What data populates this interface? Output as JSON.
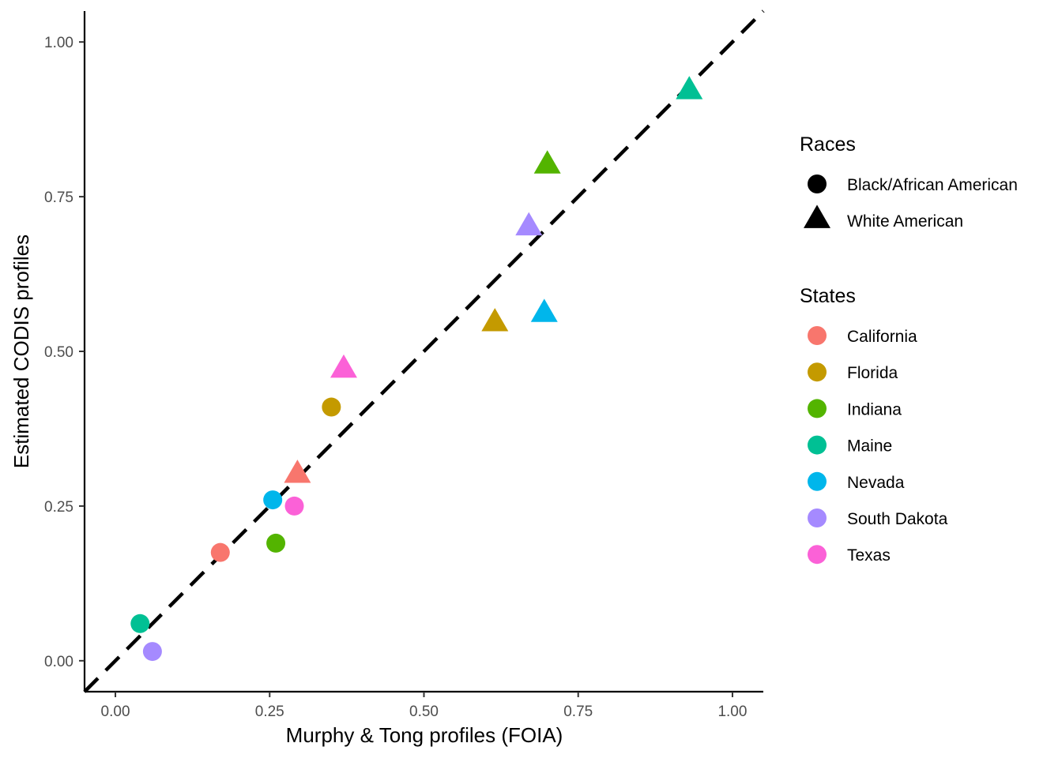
{
  "chart_data": {
    "type": "scatter",
    "xlabel": "Murphy & Tong profiles (FOIA)",
    "ylabel": "Estimated CODIS profiles",
    "xlim": [
      -0.05,
      1.05
    ],
    "ylim": [
      -0.05,
      1.05
    ],
    "x_ticks": [
      "0.00",
      "0.25",
      "0.50",
      "0.75",
      "1.00"
    ],
    "y_ticks": [
      "0.00",
      "0.25",
      "0.50",
      "0.75",
      "1.00"
    ],
    "grid": false,
    "reference_line": {
      "style": "dashed",
      "slope": 1,
      "intercept": 0,
      "color": "#000000"
    },
    "legend_placement": "right",
    "legend_races": {
      "title": "Races",
      "items": [
        {
          "label": "Black/African American",
          "shape": "circle"
        },
        {
          "label": "White American",
          "shape": "triangle"
        }
      ]
    },
    "legend_states": {
      "title": "States",
      "items": [
        {
          "label": "California",
          "color": "#F8766D"
        },
        {
          "label": "Florida",
          "color": "#C49A00"
        },
        {
          "label": "Indiana",
          "color": "#53B400"
        },
        {
          "label": "Maine",
          "color": "#00C094"
        },
        {
          "label": "Nevada",
          "color": "#00B6EB"
        },
        {
          "label": "South Dakota",
          "color": "#A58AFF"
        },
        {
          "label": "Texas",
          "color": "#FB61D7"
        }
      ]
    },
    "points": [
      {
        "state": "California",
        "race": "Black/African American",
        "x": 0.17,
        "y": 0.175
      },
      {
        "state": "California",
        "race": "White American",
        "x": 0.295,
        "y": 0.3
      },
      {
        "state": "Florida",
        "race": "Black/African American",
        "x": 0.35,
        "y": 0.41
      },
      {
        "state": "Florida",
        "race": "White American",
        "x": 0.615,
        "y": 0.545
      },
      {
        "state": "Indiana",
        "race": "Black/African American",
        "x": 0.26,
        "y": 0.19
      },
      {
        "state": "Indiana",
        "race": "White American",
        "x": 0.7,
        "y": 0.8
      },
      {
        "state": "Maine",
        "race": "Black/African American",
        "x": 0.04,
        "y": 0.06
      },
      {
        "state": "Maine",
        "race": "White American",
        "x": 0.93,
        "y": 0.92
      },
      {
        "state": "Nevada",
        "race": "Black/African American",
        "x": 0.255,
        "y": 0.26
      },
      {
        "state": "Nevada",
        "race": "White American",
        "x": 0.695,
        "y": 0.56
      },
      {
        "state": "South Dakota",
        "race": "Black/African American",
        "x": 0.06,
        "y": 0.015
      },
      {
        "state": "South Dakota",
        "race": "White American",
        "x": 0.67,
        "y": 0.7
      },
      {
        "state": "Texas",
        "race": "Black/African American",
        "x": 0.29,
        "y": 0.25
      },
      {
        "state": "Texas",
        "race": "White American",
        "x": 0.37,
        "y": 0.47
      }
    ]
  }
}
